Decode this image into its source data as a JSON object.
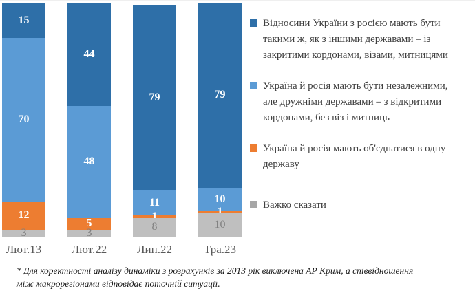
{
  "colors": {
    "dark_blue": "#2E6FA8",
    "light_blue": "#5B9BD5",
    "orange": "#ED7D31",
    "gray_bar": "#BFBFBF",
    "gray_swatch": "#A6A6A6",
    "gray_value_label": "#7F7F7F",
    "axis_label": "#595959",
    "legend_text": "#3F3F3F"
  },
  "chart_data": {
    "type": "bar",
    "stacked": true,
    "percent": true,
    "title": "",
    "xlabel": "",
    "ylabel": "",
    "ylim": [
      0,
      100
    ],
    "grid": false,
    "legend_position": "right",
    "value_labels": true,
    "categories": [
      "Лют.13",
      "Лют.22",
      "Лип.22",
      "Тра.23"
    ],
    "series": [
      {
        "name": "Відносини України з росією мають бути такими ж, як з іншими державами – із закритими кордонами, візами, митницями",
        "color": "#2E6FA8",
        "label_color": "#FFFFFF",
        "label_bold": true,
        "values": [
          15,
          44,
          79,
          79
        ]
      },
      {
        "name": "Україна й росія мають бути незалежними, але дружніми державами – з відкритими кордонами, без віз і митниць",
        "color": "#5B9BD5",
        "label_color": "#FFFFFF",
        "label_bold": true,
        "values": [
          70,
          48,
          11,
          10
        ]
      },
      {
        "name": "Україна й росія мають об'єднатися в одну державу",
        "color": "#ED7D31",
        "label_color": "#FFFFFF",
        "label_bold": true,
        "values": [
          12,
          5,
          1,
          1
        ]
      },
      {
        "name": "Важко сказати",
        "color": "#A6A6A6",
        "bar_color": "#BFBFBF",
        "label_color": "#7F7F7F",
        "label_bold": false,
        "values": [
          3,
          3,
          8,
          10
        ]
      }
    ]
  },
  "legend": {
    "items": [
      {
        "color": "#2E6FA8",
        "lines": [
          "Відносини України з росією мають бути",
          "такими ж, як з іншими державами – із",
          "закритими кордонами, візами, митницями"
        ]
      },
      {
        "color": "#5B9BD5",
        "lines": [
          "Україна й росія мають бути незалежними,",
          "але дружніми державами – з відкритими",
          "кордонами, без віз і митниць"
        ]
      },
      {
        "color": "#ED7D31",
        "lines": [
          "Україна й росія мають об'єднатися в одну",
          "державу"
        ]
      },
      {
        "color": "#A6A6A6",
        "lines": [
          "Важко сказати"
        ]
      }
    ]
  },
  "footnote": {
    "lines": [
      "* Для коректності аналізу динаміки з розрахунків за 2013 рік виключена АР Крим, а співвідношення",
      "між макрорегіонами відповідає поточній ситуації."
    ]
  }
}
